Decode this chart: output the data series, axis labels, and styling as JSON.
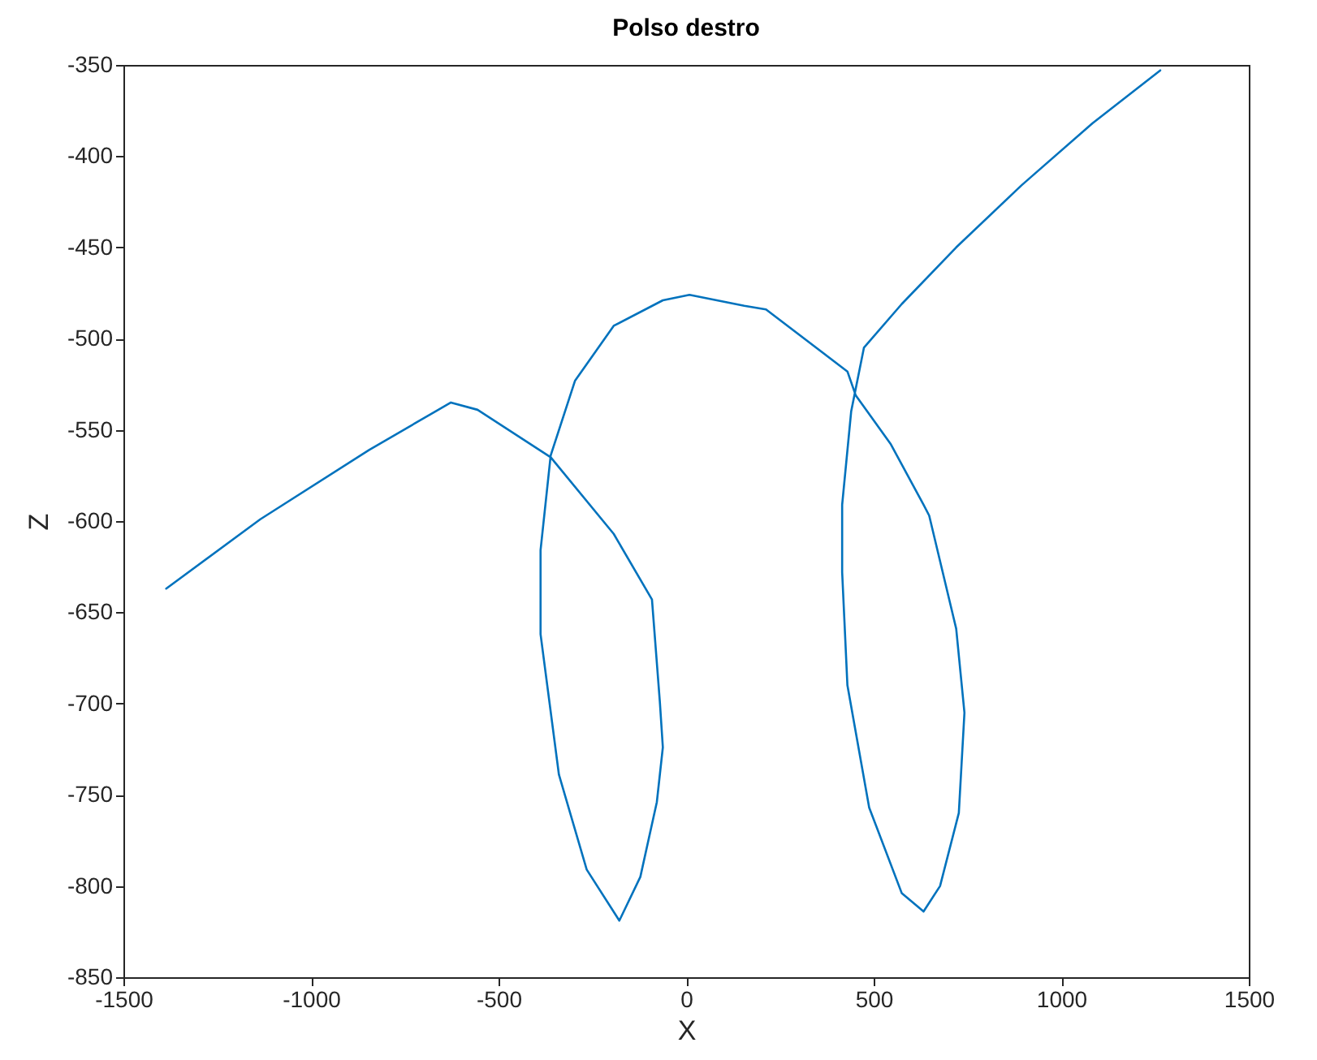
{
  "chart_data": {
    "type": "line",
    "title": "Polso destro",
    "xlabel": "X",
    "ylabel": "Z",
    "xlim": [
      -1500,
      1500
    ],
    "xticks": [
      -1500,
      -1000,
      -500,
      0,
      500,
      1000,
      1500
    ],
    "ylim": [
      -850,
      -350
    ],
    "yticks": [
      -850,
      -800,
      -750,
      -700,
      -650,
      -600,
      -550,
      -500,
      -450,
      -400,
      -350
    ],
    "grid": false,
    "legend": false,
    "series": [
      {
        "color": "#0072bd",
        "x": [
          -1386,
          -1135,
          -845,
          -627,
          -556,
          -361,
          -193,
          -91,
          -70,
          -62,
          -78,
          -122,
          -178,
          -265,
          -339,
          -388,
          -388,
          -361,
          -296,
          -193,
          -62,
          9,
          155,
          213,
          430,
          452,
          546,
          633,
          648,
          720,
          742,
          727,
          677,
          633,
          575,
          488,
          430,
          416,
          416,
          440,
          474,
          575,
          720,
          894,
          1083,
          1264
        ],
        "values": [
          -637,
          -599,
          -561,
          -535,
          -539,
          -565,
          -607,
          -643,
          -699,
          -724,
          -754,
          -795,
          -819,
          -791,
          -739,
          -662,
          -616,
          -564,
          -523,
          -493,
          -479,
          -476,
          -482,
          -484,
          -518,
          -531,
          -558,
          -591,
          -597,
          -659,
          -705,
          -760,
          -800,
          -814,
          -804,
          -757,
          -690,
          -628,
          -591,
          -540,
          -505,
          -481,
          -450,
          -416,
          -382,
          -353
        ]
      }
    ]
  }
}
